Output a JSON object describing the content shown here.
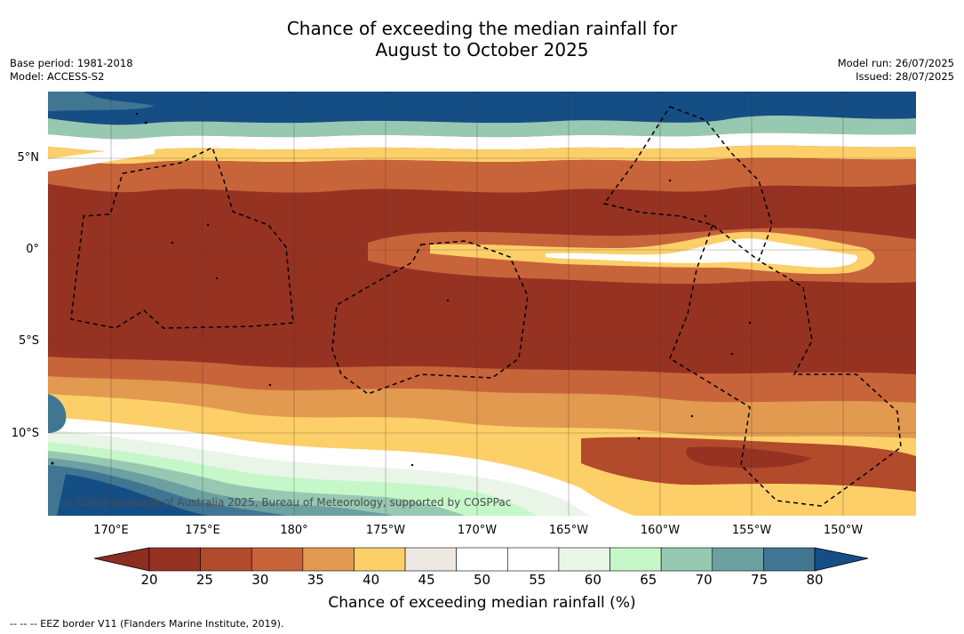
{
  "title_line1": "Chance of exceeding the median rainfall for",
  "title_line2": "August to October 2025",
  "base_period": "Base period: 1981-2018",
  "model": "Model: ACCESS-S2",
  "model_run": "Model run: 26/07/2025",
  "issued": "Issued: 28/07/2025",
  "lat_labels": [
    "5°N",
    "0°",
    "5°S",
    "10°S"
  ],
  "lon_labels": [
    "170°E",
    "175°E",
    "180°",
    "175°W",
    "170°W",
    "165°W",
    "160°W",
    "155°W",
    "150°W"
  ],
  "credit": "© Commonwealth of Australia 2025, Bureau of Meteorology, supported by COSPPac",
  "colorbar": {
    "ticks": [
      "20",
      "25",
      "30",
      "35",
      "40",
      "45",
      "50",
      "55",
      "60",
      "65",
      "70",
      "75",
      "80"
    ],
    "colors": [
      "#963222",
      "#b24a2c",
      "#c8643a",
      "#e19a4f",
      "#fdcf69",
      "#eee8e2",
      "#ffffff",
      "#ffffff",
      "#e9f5e7",
      "#c5f7c9",
      "#97c8b2",
      "#6ca0a1",
      "#417693"
    ],
    "under_color": "#8b2e20",
    "over_color": "#154e85",
    "title": "Chance of exceeding median rainfall (%)"
  },
  "legend": "--  --  -- EEZ border V11 (Flanders Marine Institute, 2019)."
}
